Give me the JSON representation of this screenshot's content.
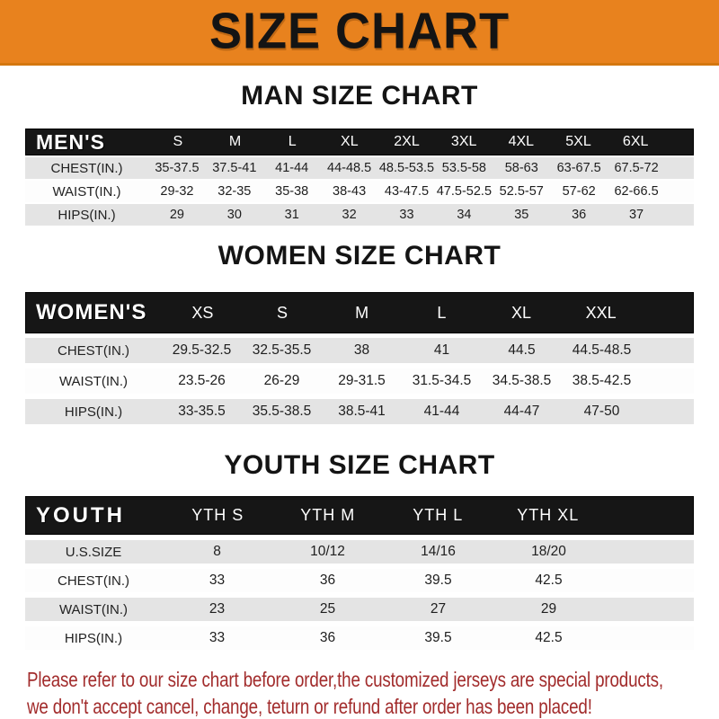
{
  "banner": {
    "title": "SIZE CHART"
  },
  "sections": [
    {
      "id": "men",
      "title": "MAN SIZE CHART",
      "header_label": "MEN'S",
      "columns": [
        "S",
        "M",
        "L",
        "XL",
        "2XL",
        "3XL",
        "4XL",
        "5XL",
        "6XL"
      ],
      "rows": [
        {
          "label": "CHEST(IN.)",
          "values": [
            "35-37.5",
            "37.5-41",
            "41-44",
            "44-48.5",
            "48.5-53.5",
            "53.5-58",
            "58-63",
            "63-67.5",
            "67.5-72"
          ]
        },
        {
          "label": "WAIST(IN.)",
          "values": [
            "29-32",
            "32-35",
            "35-38",
            "38-43",
            "43-47.5",
            "47.5-52.5",
            "52.5-57",
            "57-62",
            "62-66.5"
          ]
        },
        {
          "label": "HIPS(IN.)",
          "values": [
            "29",
            "30",
            "31",
            "32",
            "33",
            "34",
            "35",
            "36",
            "37"
          ]
        }
      ]
    },
    {
      "id": "women",
      "title": "WOMEN SIZE CHART",
      "header_label": "WOMEN'S",
      "columns": [
        "XS",
        "S",
        "M",
        "L",
        "XL",
        "XXL"
      ],
      "rows": [
        {
          "label": "CHEST(IN.)",
          "values": [
            "29.5-32.5",
            "32.5-35.5",
            "38",
            "41",
            "44.5",
            "44.5-48.5"
          ]
        },
        {
          "label": "WAIST(IN.)",
          "values": [
            "23.5-26",
            "26-29",
            "29-31.5",
            "31.5-34.5",
            "34.5-38.5",
            "38.5-42.5"
          ]
        },
        {
          "label": "HIPS(IN.)",
          "values": [
            "33-35.5",
            "35.5-38.5",
            "38.5-41",
            "41-44",
            "44-47",
            "47-50"
          ]
        }
      ]
    },
    {
      "id": "youth",
      "title": "YOUTH SIZE CHART",
      "header_label": "YOUTH",
      "columns": [
        "YTH S",
        "YTH M",
        "YTH L",
        "YTH XL"
      ],
      "rows": [
        {
          "label": "U.S.SIZE",
          "values": [
            "8",
            "10/12",
            "14/16",
            "18/20"
          ]
        },
        {
          "label": "CHEST(IN.)",
          "values": [
            "33",
            "36",
            "39.5",
            "42.5"
          ]
        },
        {
          "label": "WAIST(IN.)",
          "values": [
            "23",
            "25",
            "27",
            "29"
          ]
        },
        {
          "label": "HIPS(IN.)",
          "values": [
            "33",
            "36",
            "39.5",
            "42.5"
          ]
        }
      ]
    }
  ],
  "footer": {
    "line1": "Please refer to our size chart before order,the customized jerseys are special products,",
    "line2": "we don't accept cancel, change, teturn or refund after order has been placed!"
  },
  "colors": {
    "banner_bg": "#E8821E",
    "banner_text": "#141414",
    "bar_bg": "#161616",
    "bar_text": "#FFFFFF",
    "row_shade": "#E4E4E4",
    "footer_text": "#A22C2C"
  }
}
